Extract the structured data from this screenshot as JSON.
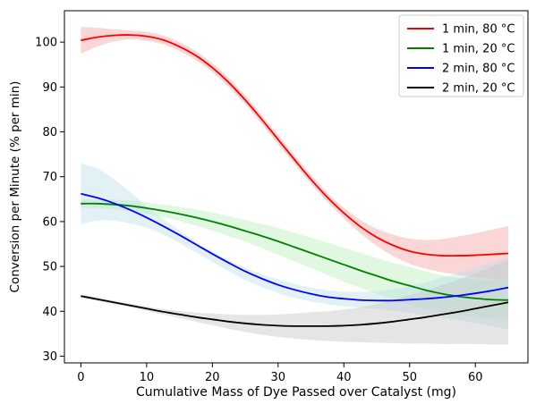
{
  "chart_data": {
    "type": "line",
    "title": "",
    "xlabel": "Cumulative Mass of Dye Passed over Catalyst (mg)",
    "ylabel": "Conversion per Minute (% per min)",
    "xlim": [
      -2.5,
      68
    ],
    "ylim": [
      28.5,
      107
    ],
    "xticks": [
      0,
      10,
      20,
      30,
      40,
      50,
      60
    ],
    "yticks": [
      30,
      40,
      50,
      60,
      70,
      80,
      90,
      100
    ],
    "grid": false,
    "legend": "top-right",
    "series": [
      {
        "name": "1 min, 80 °C",
        "color": "#ff0000",
        "band_color": "#f4a3a3",
        "x": [
          0,
          2.5,
          5,
          7.5,
          10,
          12.5,
          15,
          17.5,
          20,
          22.5,
          25,
          27.5,
          30,
          32.5,
          35,
          37.5,
          40,
          42.5,
          45,
          47.5,
          50,
          52.5,
          55,
          57.5,
          60,
          62.5,
          65
        ],
        "y": [
          100.4,
          101.1,
          101.5,
          101.6,
          101.3,
          100.5,
          99.0,
          97.0,
          94.3,
          91.0,
          87.1,
          82.8,
          78.3,
          73.8,
          69.4,
          65.4,
          61.9,
          58.9,
          56.5,
          54.7,
          53.4,
          52.7,
          52.4,
          52.4,
          52.5,
          52.7,
          52.9
        ],
        "lower": [
          97.4,
          99.0,
          100.1,
          100.6,
          100.3,
          99.5,
          98.0,
          96.0,
          93.3,
          90.0,
          86.1,
          81.8,
          77.3,
          72.8,
          68.4,
          64.4,
          60.7,
          57.4,
          54.6,
          52.3,
          50.6,
          49.5,
          48.7,
          48.1,
          47.6,
          47.2,
          46.8
        ],
        "upper": [
          103.4,
          103.2,
          102.9,
          102.6,
          102.3,
          101.5,
          100.0,
          98.0,
          95.3,
          92.0,
          88.1,
          83.8,
          79.3,
          74.8,
          70.4,
          66.4,
          63.1,
          60.4,
          58.4,
          57.1,
          56.2,
          55.9,
          56.1,
          56.7,
          57.4,
          58.2,
          59.0
        ]
      },
      {
        "name": "1 min, 20 °C",
        "color": "#007f00",
        "band_color": "#b9f0b9",
        "x": [
          0,
          2.5,
          5,
          7.5,
          10,
          12.5,
          15,
          17.5,
          20,
          22.5,
          25,
          27.5,
          30,
          32.5,
          35,
          37.5,
          40,
          42.5,
          45,
          47.5,
          50,
          52.5,
          55,
          57.5,
          60,
          62.5,
          65
        ],
        "y": [
          64.0,
          64.0,
          63.8,
          63.5,
          63.0,
          62.4,
          61.7,
          60.9,
          60.0,
          59.0,
          57.9,
          56.8,
          55.6,
          54.3,
          53.0,
          51.7,
          50.4,
          49.1,
          47.9,
          46.7,
          45.7,
          44.7,
          43.9,
          43.3,
          42.9,
          42.6,
          42.5
        ],
        "lower": [
          63.0,
          63.0,
          62.7,
          62.3,
          61.7,
          61.0,
          60.1,
          59.1,
          58.0,
          56.8,
          55.5,
          54.1,
          52.6,
          51.1,
          49.6,
          48.1,
          46.6,
          45.2,
          43.9,
          42.6,
          41.5,
          40.5,
          39.8,
          39.2,
          38.7,
          38.4,
          38.2
        ],
        "upper": [
          65.0,
          65.0,
          64.9,
          64.7,
          64.3,
          63.8,
          63.3,
          62.7,
          62.0,
          61.2,
          60.3,
          59.5,
          58.6,
          57.5,
          56.4,
          55.3,
          54.2,
          53.0,
          51.9,
          50.8,
          49.9,
          48.9,
          48.0,
          47.4,
          47.1,
          46.8,
          46.8
        ]
      },
      {
        "name": "2 min, 80 °C",
        "color": "#0000ff",
        "band_color": "#bfe0ec",
        "x": [
          0,
          2.5,
          5,
          7.5,
          10,
          12.5,
          15,
          17.5,
          20,
          22.5,
          25,
          27.5,
          30,
          32.5,
          35,
          37.5,
          40,
          42.5,
          45,
          47.5,
          50,
          52.5,
          55,
          57.5,
          60,
          62.5,
          65
        ],
        "y": [
          66.2,
          65.3,
          64.1,
          62.6,
          60.9,
          59.0,
          57.0,
          54.9,
          52.8,
          50.8,
          48.9,
          47.3,
          45.9,
          44.8,
          43.9,
          43.2,
          42.8,
          42.5,
          42.4,
          42.4,
          42.6,
          42.8,
          43.1,
          43.5,
          44.0,
          44.6,
          45.3
        ],
        "lower": [
          59.4,
          60.2,
          60.2,
          59.6,
          58.6,
          57.1,
          55.2,
          53.1,
          51.0,
          48.9,
          47.0,
          45.4,
          44.1,
          43.0,
          42.2,
          41.6,
          41.1,
          40.8,
          40.5,
          40.1,
          39.6,
          39.1,
          38.6,
          38.0,
          37.4,
          36.7,
          36.0
        ],
        "upper": [
          73.0,
          71.8,
          69.5,
          66.6,
          63.4,
          60.6,
          58.0,
          55.5,
          53.3,
          51.4,
          49.7,
          48.3,
          47.1,
          46.1,
          45.3,
          44.7,
          44.4,
          44.3,
          44.5,
          44.9,
          45.6,
          46.5,
          47.5,
          48.6,
          49.7,
          50.9,
          52.0
        ]
      },
      {
        "name": "2 min, 20 °C",
        "color": "#000000",
        "band_color": "#c6c6c6",
        "x": [
          0,
          2.5,
          5,
          7.5,
          10,
          12.5,
          15,
          17.5,
          20,
          22.5,
          25,
          27.5,
          30,
          32.5,
          35,
          37.5,
          40,
          42.5,
          45,
          47.5,
          50,
          52.5,
          55,
          57.5,
          60,
          62.5,
          65
        ],
        "y": [
          43.4,
          42.7,
          42.0,
          41.3,
          40.6,
          39.9,
          39.3,
          38.7,
          38.2,
          37.7,
          37.3,
          37.0,
          36.8,
          36.7,
          36.7,
          36.7,
          36.8,
          37.0,
          37.3,
          37.7,
          38.2,
          38.7,
          39.3,
          39.9,
          40.6,
          41.3,
          42.0
        ],
        "lower": [
          43.0,
          42.3,
          41.6,
          40.9,
          40.1,
          39.3,
          38.5,
          37.7,
          36.9,
          36.1,
          35.4,
          34.8,
          34.3,
          33.9,
          33.6,
          33.4,
          33.2,
          33.1,
          33.0,
          32.9,
          32.8,
          32.8,
          32.7,
          32.7,
          32.7,
          32.6,
          32.6
        ],
        "upper": [
          43.8,
          43.1,
          42.4,
          41.7,
          41.1,
          40.5,
          40.1,
          39.7,
          39.5,
          39.3,
          39.2,
          39.2,
          39.3,
          39.5,
          39.8,
          40.0,
          40.4,
          40.9,
          41.6,
          42.5,
          43.6,
          44.6,
          45.9,
          47.1,
          48.5,
          49.9,
          51.4
        ]
      }
    ]
  }
}
